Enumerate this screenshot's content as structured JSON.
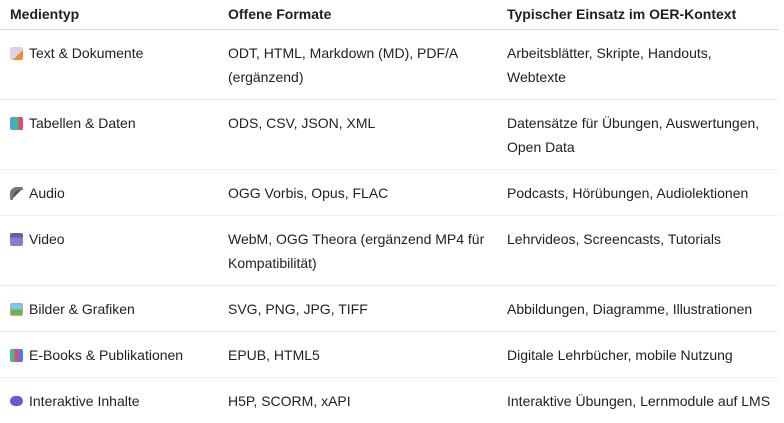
{
  "headers": [
    "Medientyp",
    "Offene Formate",
    "Typischer Einsatz im OER-Kontext"
  ],
  "rows": [
    {
      "icon": "memo-icon",
      "type": "Text & Dokumente",
      "formats": "ODT, HTML, Markdown (MD), PDF/A (ergänzend)",
      "usage": "Arbeitsblätter, Skripte, Handouts, Webtexte"
    },
    {
      "icon": "bar-chart-icon",
      "type": "Tabellen & Daten",
      "formats": "ODS, CSV, JSON, XML",
      "usage": "Datensätze für Übungen, Auswertungen, Open Data"
    },
    {
      "icon": "microphone-icon",
      "type": "Audio",
      "formats": "OGG Vorbis, Opus, FLAC",
      "usage": "Podcasts, Hörübungen, Audiolektionen"
    },
    {
      "icon": "clapper-board-icon",
      "type": "Video",
      "formats": "WebM, OGG Theora (ergänzend MP4 für Kompatibilität)",
      "usage": "Lehrvideos, Screencasts, Tutorials"
    },
    {
      "icon": "framed-picture-icon",
      "type": "Bilder & Grafiken",
      "formats": "SVG, PNG, JPG, TIFF",
      "usage": "Abbildungen, Diagramme, Illustrationen"
    },
    {
      "icon": "books-icon",
      "type": "E-Books & Publikationen",
      "formats": "EPUB, HTML5",
      "usage": "Digitale Lehrbücher, mobile Nutzung"
    },
    {
      "icon": "game-controller-icon",
      "type": "Interaktive Inhalte",
      "formats": "H5P, SCORM, xAPI",
      "usage": "Interaktive Übungen, Lernmodule auf LMS"
    }
  ]
}
